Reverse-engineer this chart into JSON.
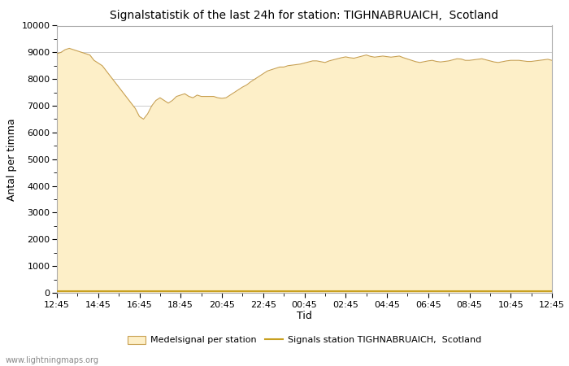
{
  "title": "Signalstatistik of the last 24h for station: TIGHNABRUAICH,  Scotland",
  "ylabel": "Antal per timma",
  "xlabel": "Tid",
  "watermark": "www.lightningmaps.org",
  "legend_area": "Medelsignal per station",
  "legend_line": "Signals station TIGHNABRUAICH,  Scotland",
  "fill_color": "#fdefc8",
  "fill_edge_color": "#c8a050",
  "line_color": "#c8a020",
  "background_color": "#ffffff",
  "grid_color": "#cccccc",
  "ylim": [
    0,
    10000
  ],
  "yticks": [
    0,
    1000,
    2000,
    3000,
    4000,
    5000,
    6000,
    7000,
    8000,
    9000,
    10000
  ],
  "xtick_labels": [
    "12:45",
    "14:45",
    "16:45",
    "18:45",
    "20:45",
    "22:45",
    "00:45",
    "02:45",
    "04:45",
    "06:45",
    "08:45",
    "10:45",
    "12:45"
  ],
  "x_values": [
    0,
    2,
    4,
    6,
    8,
    10,
    12,
    14,
    16,
    18,
    20,
    22,
    24,
    26,
    28,
    30,
    32,
    34,
    36,
    38,
    40,
    42,
    44,
    46,
    48,
    50,
    52,
    54,
    56,
    58,
    60,
    62,
    64,
    66,
    68,
    70,
    72,
    74,
    76,
    78,
    80,
    82,
    84,
    86,
    88,
    90,
    92,
    94,
    96,
    98,
    100,
    102,
    104,
    106,
    108,
    110,
    112,
    114,
    116,
    118,
    120,
    122,
    124,
    126,
    128,
    130,
    132,
    134,
    136,
    138,
    140,
    142,
    144,
    146,
    148,
    150,
    152,
    154,
    156,
    158,
    160,
    162,
    164,
    166,
    168,
    170,
    172,
    174,
    176,
    178,
    180,
    182,
    184,
    186,
    188,
    190,
    192,
    194,
    196,
    198,
    200,
    202,
    204,
    206,
    208,
    210,
    212,
    214,
    216,
    218,
    220,
    222,
    224,
    226,
    228,
    230,
    232,
    234,
    236,
    238,
    240
  ],
  "y_fill_values": [
    8950,
    9000,
    9100,
    9150,
    9100,
    9050,
    9000,
    8950,
    8900,
    8700,
    8600,
    8500,
    8300,
    8100,
    7900,
    7700,
    7500,
    7300,
    7100,
    6900,
    6600,
    6500,
    6700,
    7000,
    7200,
    7300,
    7200,
    7100,
    7200,
    7350,
    7400,
    7450,
    7350,
    7300,
    7400,
    7350,
    7350,
    7350,
    7350,
    7300,
    7280,
    7300,
    7400,
    7500,
    7600,
    7700,
    7780,
    7900,
    8000,
    8100,
    8200,
    8300,
    8350,
    8400,
    8450,
    8450,
    8500,
    8520,
    8540,
    8560,
    8600,
    8640,
    8680,
    8680,
    8650,
    8620,
    8680,
    8720,
    8760,
    8800,
    8830,
    8800,
    8780,
    8820,
    8860,
    8900,
    8850,
    8820,
    8840,
    8860,
    8840,
    8820,
    8840,
    8860,
    8800,
    8750,
    8700,
    8650,
    8620,
    8650,
    8680,
    8700,
    8660,
    8640,
    8660,
    8680,
    8720,
    8760,
    8750,
    8700,
    8700,
    8720,
    8740,
    8760,
    8720,
    8680,
    8640,
    8620,
    8650,
    8680,
    8700,
    8700,
    8700,
    8680,
    8660,
    8660,
    8680,
    8700,
    8720,
    8740,
    8700
  ],
  "y_line_values": [
    50,
    50,
    50,
    50,
    50,
    50,
    50,
    50,
    50,
    50,
    50,
    50,
    50,
    50,
    50,
    50,
    50,
    50,
    50,
    50,
    50,
    50,
    50,
    50,
    50,
    50,
    50,
    50,
    50,
    50,
    50,
    50,
    50,
    50,
    50,
    50,
    50,
    50,
    50,
    50,
    50,
    50,
    50,
    50,
    50,
    50,
    50,
    50,
    50,
    50,
    50,
    50,
    50,
    50,
    50,
    50,
    50,
    50,
    50,
    50,
    50,
    50,
    50,
    50,
    50,
    50,
    50,
    50,
    50,
    50,
    50,
    50,
    50,
    50,
    50,
    50,
    50,
    50,
    50,
    50,
    50,
    50,
    50,
    50,
    50,
    50,
    50,
    50,
    50,
    50,
    50,
    50,
    50,
    50,
    50,
    50,
    50,
    50,
    50,
    50,
    50,
    50,
    50,
    50,
    50,
    50,
    50,
    50,
    50,
    50,
    50,
    50,
    50,
    50,
    50,
    50,
    50,
    50,
    50,
    50,
    50
  ]
}
